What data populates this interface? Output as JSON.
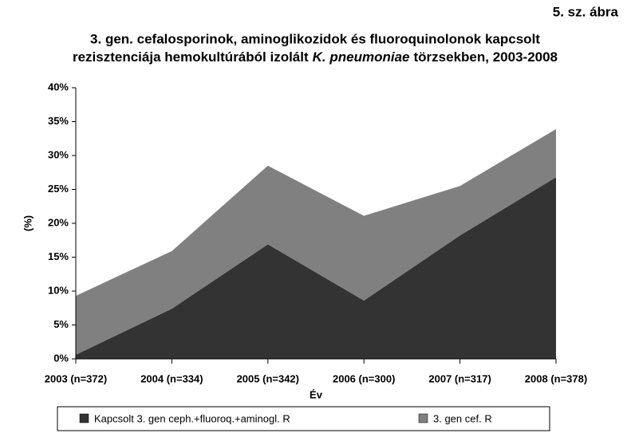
{
  "figure_label": "5. sz. ábra",
  "chart_data": {
    "type": "area",
    "stacked": true,
    "title": [
      "3. gen. cefalosporinok, aminoglikozidok és fluoroquinolonok kapcsolt",
      "rezisztenciája hemokultúrából izolált",
      "K. pneumoniae",
      "törzsekben, 2003-2008"
    ],
    "x_label": "Év",
    "y_label": "(%)",
    "categories": [
      "2003 (n=372)",
      "2004 (n=334)",
      "2005 (n=342)",
      "2006 (n=300)",
      "2007 (n=317)",
      "2008 (n=378)"
    ],
    "series": [
      {
        "name": "Kapcsolt 3. gen ceph.+fluoroq.+aminogl. R",
        "color": "#333333",
        "values": [
          0.6,
          7.4,
          16.9,
          8.6,
          18.2,
          26.8
        ]
      },
      {
        "name": "3. gen cef. R",
        "color": "#808080",
        "values": [
          8.7,
          8.5,
          11.6,
          12.5,
          7.3,
          7.1
        ]
      }
    ],
    "ylim": [
      0,
      40
    ],
    "yticks": [
      {
        "value": 0,
        "label": "0%"
      },
      {
        "value": 5,
        "label": "5%"
      },
      {
        "value": 10,
        "label": "10%"
      },
      {
        "value": 15,
        "label": "15%"
      },
      {
        "value": 20,
        "label": "20%"
      },
      {
        "value": 25,
        "label": "25%"
      },
      {
        "value": 30,
        "label": "30%"
      },
      {
        "value": 35,
        "label": "35%"
      },
      {
        "value": 40,
        "label": "40%"
      }
    ],
    "legend": "bottom"
  }
}
